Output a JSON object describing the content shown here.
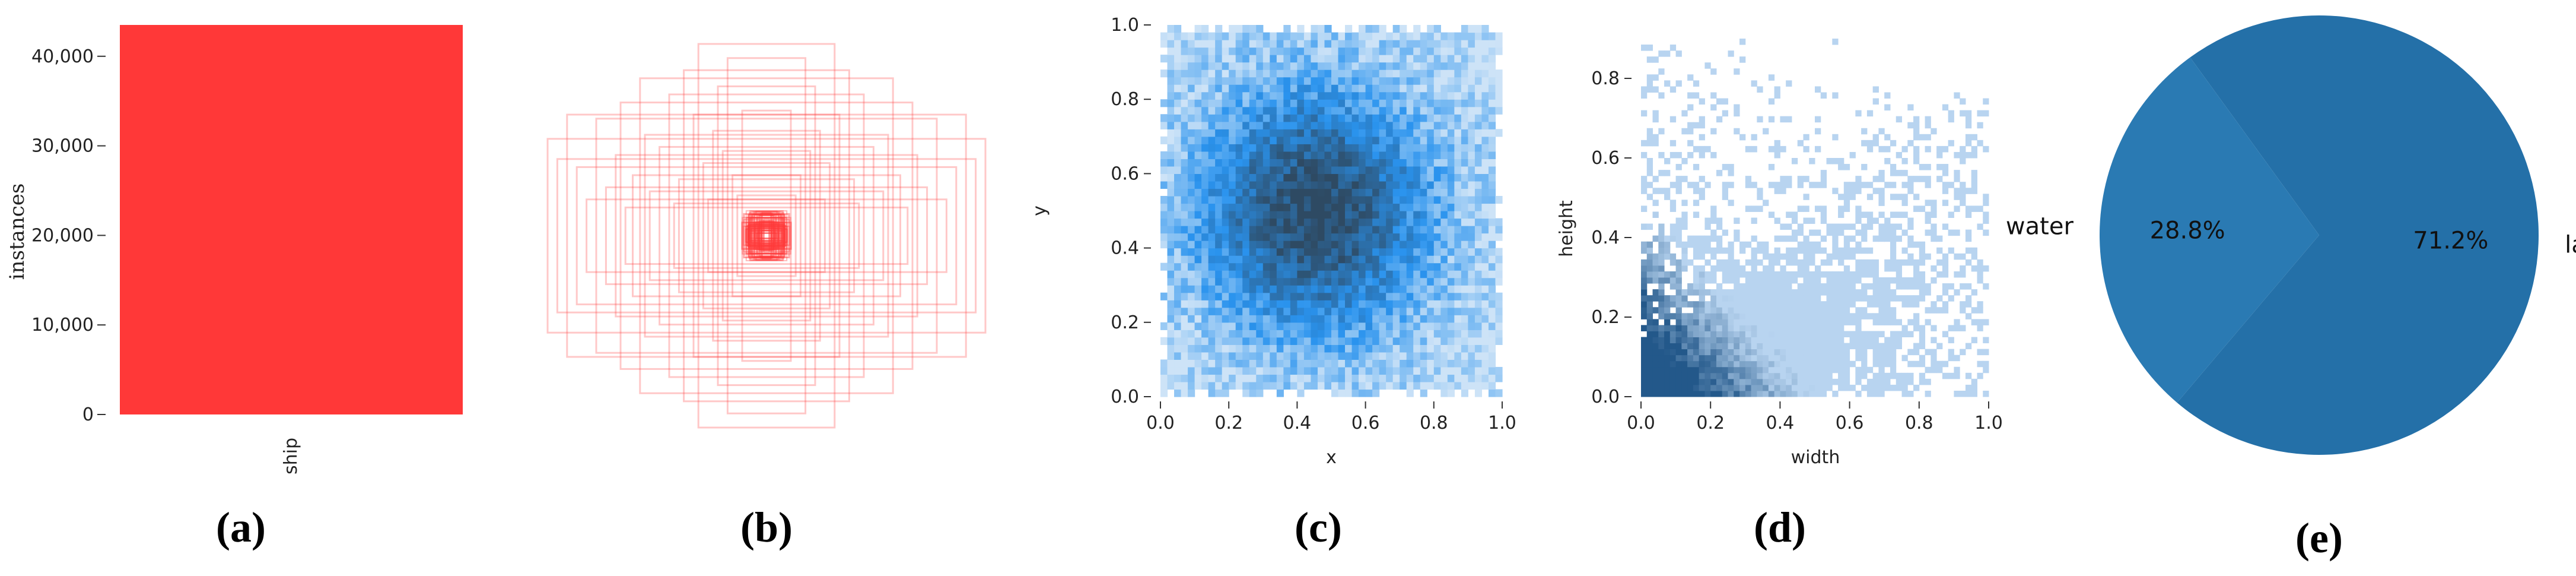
{
  "chart_data": [
    {
      "type": "bar",
      "panel": "(a)",
      "categories": [
        "ship"
      ],
      "values": [
        43500
      ],
      "color": "#ff3838",
      "ylabel": "instances",
      "yticks": [
        0,
        10000,
        20000,
        30000,
        40000
      ],
      "ytick_labels": [
        "0",
        "10,000",
        "20,000",
        "30,000",
        "40,000"
      ],
      "ylim": [
        0,
        43500
      ]
    },
    {
      "type": "other",
      "panel": "(b)",
      "color": "#ff3838",
      "boxes_wh": [
        [
          0.9,
          0.48
        ],
        [
          0.78,
          0.34
        ],
        [
          0.7,
          0.58
        ],
        [
          0.62,
          0.4
        ],
        [
          0.55,
          0.3
        ],
        [
          0.82,
          0.6
        ],
        [
          0.48,
          0.22
        ],
        [
          0.4,
          0.7
        ],
        [
          0.34,
          0.82
        ],
        [
          0.28,
          0.95
        ],
        [
          0.3,
          0.6
        ],
        [
          0.22,
          0.52
        ],
        [
          0.18,
          0.42
        ],
        [
          0.14,
          0.3
        ],
        [
          0.12,
          0.2
        ],
        [
          0.6,
          0.66
        ],
        [
          0.5,
          0.5
        ],
        [
          0.44,
          0.44
        ],
        [
          0.66,
          0.24
        ],
        [
          0.86,
          0.38
        ],
        [
          0.74,
          0.18
        ],
        [
          0.36,
          0.28
        ],
        [
          0.26,
          0.36
        ],
        [
          0.58,
          0.14
        ],
        [
          0.2,
          0.74
        ],
        [
          0.16,
          0.88
        ],
        [
          0.38,
          0.16
        ],
        [
          0.24,
          0.18
        ],
        [
          0.1,
          0.62
        ],
        [
          0.52,
          0.78
        ]
      ]
    },
    {
      "type": "heatmap",
      "panel": "(c)",
      "xlabel": "x",
      "ylabel": "y",
      "xlim": [
        0,
        1
      ],
      "ylim": [
        0,
        1
      ],
      "xticks": [
        "0.0",
        "0.2",
        "0.4",
        "0.6",
        "0.8",
        "1.0"
      ],
      "yticks": [
        "0.0",
        "0.2",
        "0.4",
        "0.6",
        "0.8",
        "1.0"
      ],
      "bins": 50,
      "colors": {
        "low": "#cde3f7",
        "mid": "#2a93ee",
        "high": "#2e4a63"
      },
      "density_peak": [
        0.45,
        0.5
      ]
    },
    {
      "type": "heatmap",
      "panel": "(d)",
      "xlabel": "width",
      "ylabel": "height",
      "xlim": [
        0,
        1
      ],
      "ylim": [
        0,
        0.9
      ],
      "xticks": [
        "0.0",
        "0.2",
        "0.4",
        "0.6",
        "0.8",
        "1.0"
      ],
      "yticks": [
        "0.0",
        "0.2",
        "0.4",
        "0.6",
        "0.8"
      ],
      "bins": 60,
      "colors": {
        "low": "#b8d4f0",
        "high": "#23588a"
      },
      "density_peak": [
        0.03,
        0.03
      ]
    },
    {
      "type": "pie",
      "panel": "(e)",
      "labels": [
        "land",
        "water"
      ],
      "values": [
        71.2,
        28.8
      ],
      "value_labels": [
        "71.2%",
        "28.8%"
      ],
      "colors": [
        "#2470a8",
        "#2a7ab3"
      ]
    }
  ],
  "panel_labels": [
    "(a)",
    "(b)",
    "(c)",
    "(d)",
    "(e)"
  ]
}
